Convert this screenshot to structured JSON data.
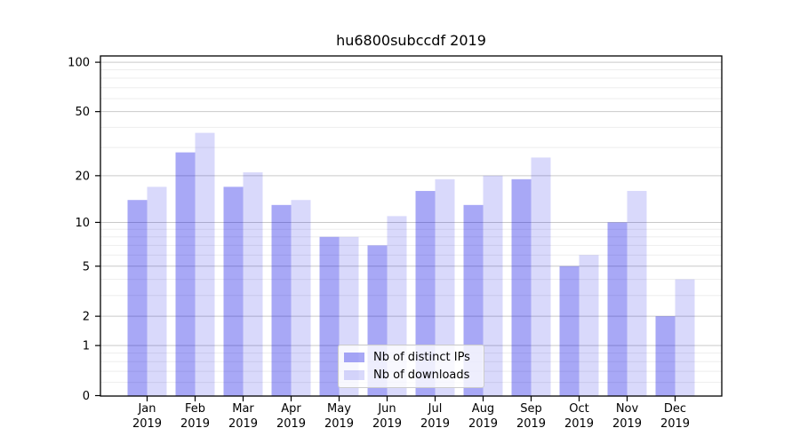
{
  "chart_data": {
    "type": "bar",
    "title": "hu6800subccdf 2019",
    "categories": [
      "Jan",
      "Feb",
      "Mar",
      "Apr",
      "May",
      "Jun",
      "Jul",
      "Aug",
      "Sep",
      "Oct",
      "Nov",
      "Dec"
    ],
    "x_tick_second_line": "2019",
    "series": [
      {
        "name": "Nb of distinct IPs",
        "color": "rgba(0,0,230,0.34)",
        "values": [
          14,
          28,
          17,
          13,
          8,
          7,
          16,
          13,
          19,
          5,
          10,
          2
        ]
      },
      {
        "name": "Nb of downloads",
        "color": "rgba(0,0,230,0.15)",
        "values": [
          17,
          37,
          21,
          14,
          8,
          11,
          19,
          20,
          26,
          6,
          16,
          4
        ]
      }
    ],
    "y_axis": {
      "scale": "log1p",
      "ticks": [
        0,
        1,
        2,
        5,
        10,
        20,
        50,
        100
      ],
      "minor_ticks": [
        0.2,
        0.4,
        0.6,
        0.8,
        3,
        4,
        6,
        7,
        8,
        9,
        30,
        40,
        60,
        70,
        80,
        90
      ],
      "min": 0,
      "max": 110
    },
    "grid": true,
    "legend": {
      "position": "lower center"
    }
  },
  "colors": {
    "major_grid": "#c9c9c9",
    "minor_grid": "#ededed",
    "spine": "#000000",
    "tick": "#000000",
    "text": "#000000"
  }
}
